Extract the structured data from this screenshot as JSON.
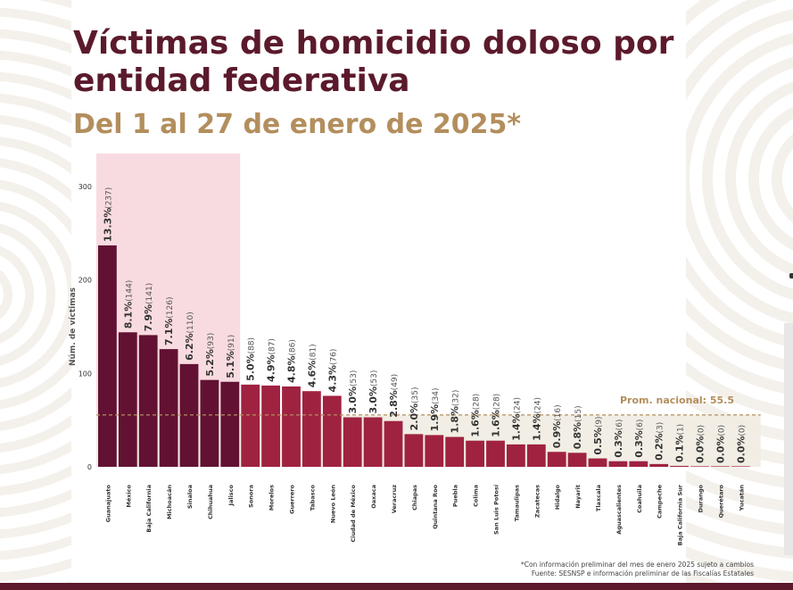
{
  "title": "Víctimas de homicidio doloso por entidad federativa",
  "subtitle": "Del 1 al 27 de enero de 2025*",
  "footnote_1": "*Con información preliminar del mes de enero 2025 sujeto a cambios",
  "footnote_2": "Fuente: SESNSP e información preliminar de las Fiscalías Estatales",
  "colors": {
    "title": "#5b1a2b",
    "subtitle": "#b38e5d",
    "top_bar": "#621132",
    "bar": "#9f2241",
    "highlight": "#f7d5db",
    "average": "#b38e5d"
  },
  "chart_data": {
    "type": "bar",
    "ylabel": "Núm. de víctimas",
    "ylim": [
      0,
      300
    ],
    "yticks": [
      0,
      100,
      200,
      300
    ],
    "highlight_count": 7,
    "average_label": "Prom. nacional: 55.5",
    "average": 55.5,
    "categories": [
      "Guanajuato",
      "México",
      "Baja California",
      "Michoacán",
      "Sinaloa",
      "Chihuahua",
      "Jalisco",
      "Sonora",
      "Morelos",
      "Guerrero",
      "Tabasco",
      "Nuevo León",
      "Ciudad de México",
      "Oaxaca",
      "Veracruz",
      "Chiapas",
      "Quintana Roo",
      "Puebla",
      "Colima",
      "San Luis Potosí",
      "Tamaulipas",
      "Zacatecas",
      "Hidalgo",
      "Nayarit",
      "Tlaxcala",
      "Aguascalientes",
      "Coahuila",
      "Campeche",
      "Baja California Sur",
      "Durango",
      "Querétaro",
      "Yucatán"
    ],
    "values": [
      237,
      144,
      141,
      126,
      110,
      93,
      91,
      88,
      87,
      86,
      81,
      76,
      53,
      53,
      49,
      35,
      34,
      32,
      28,
      28,
      24,
      24,
      16,
      15,
      9,
      6,
      6,
      3,
      1,
      0,
      0,
      0
    ],
    "percents": [
      "13.3%",
      "8.1%",
      "7.9%",
      "7.1%",
      "6.2%",
      "5.2%",
      "5.1%",
      "5.0%",
      "4.9%",
      "4.8%",
      "4.6%",
      "4.3%",
      "3.0%",
      "3.0%",
      "2.8%",
      "2.0%",
      "1.9%",
      "1.8%",
      "1.6%",
      "1.6%",
      "1.4%",
      "1.4%",
      "0.9%",
      "0.8%",
      "0.5%",
      "0.3%",
      "0.3%",
      "0.2%",
      "0.1%",
      "0.0%",
      "0.0%",
      "0.0%"
    ],
    "counts": [
      "(237)",
      "(144)",
      "(141)",
      "(126)",
      "(110)",
      "(93)",
      "(91)",
      "(88)",
      "(87)",
      "(86)",
      "(81)",
      "(76)",
      "(53)",
      "(53)",
      "(49)",
      "(35)",
      "(34)",
      "(32)",
      "(28)",
      "(28)",
      "(24)",
      "(24)",
      "(16)",
      "(15)",
      "(9)",
      "(6)",
      "(6)",
      "(3)",
      "(1)",
      "(0)",
      "(0)",
      "(0)"
    ]
  }
}
